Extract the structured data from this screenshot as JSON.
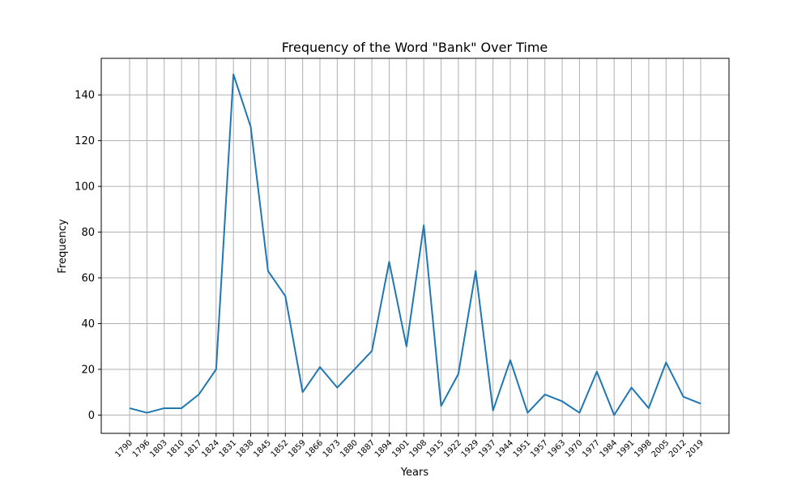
{
  "chart_data": {
    "type": "line",
    "title": "Frequency of the Word \"Bank\" Over Time",
    "xlabel": "Years",
    "ylabel": "Frequency",
    "x": [
      "1790",
      "1796",
      "1803",
      "1810",
      "1817",
      "1824",
      "1831",
      "1838",
      "1845",
      "1852",
      "1859",
      "1866",
      "1873",
      "1880",
      "1887",
      "1894",
      "1901",
      "1908",
      "1915",
      "1922",
      "1929",
      "1937",
      "1944",
      "1951",
      "1957",
      "1963",
      "1970",
      "1977",
      "1984",
      "1991",
      "1998",
      "2005",
      "2012",
      "2019"
    ],
    "series": [
      {
        "values": [
          3,
          1,
          3,
          3,
          9,
          20,
          149,
          126,
          63,
          52,
          10,
          21,
          12,
          20,
          28,
          67,
          30,
          83,
          4,
          18,
          63,
          2,
          24,
          1,
          9,
          6,
          1,
          19,
          0,
          12,
          3,
          23,
          8,
          5
        ],
        "color": "#1f77b4"
      }
    ],
    "ylim": [
      -8,
      156
    ],
    "yticks": [
      0,
      20,
      40,
      60,
      80,
      100,
      120,
      140
    ],
    "grid": true
  }
}
